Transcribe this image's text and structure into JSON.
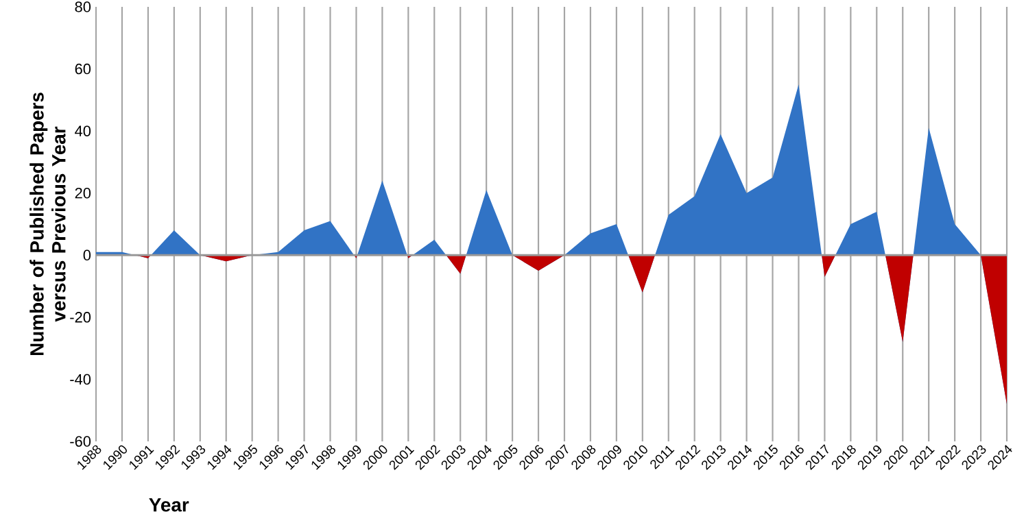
{
  "chart_data": {
    "type": "area",
    "xlabel": "Year",
    "ylabel": "Number of Published Papers versus Previous Year",
    "categories": [
      "1988",
      "1990",
      "1991",
      "1992",
      "1993",
      "1994",
      "1995",
      "1996",
      "1997",
      "1998",
      "1999",
      "2000",
      "2001",
      "2002",
      "2003",
      "2004",
      "2005",
      "2006",
      "2007",
      "2008",
      "2009",
      "2010",
      "2011",
      "2012",
      "2013",
      "2014",
      "2015",
      "2016",
      "2017",
      "2018",
      "2019",
      "2020",
      "2021",
      "2022",
      "2023",
      "2024"
    ],
    "series": [
      {
        "color": "#3173c5",
        "values": [
          1,
          1,
          -1,
          8,
          0,
          -2,
          0,
          1,
          8,
          11,
          -1,
          24,
          -1,
          5,
          -6,
          21,
          0,
          -5,
          0,
          7,
          10,
          -12,
          13,
          19,
          39,
          20,
          25,
          55,
          -7,
          10,
          14,
          -28,
          41,
          10,
          0,
          -48
        ],
        "colors": [
          "#3173c5",
          "#3173c5",
          "#c00000",
          "#3173c5",
          "#3173c5",
          "#c00000",
          "#3173c5",
          "#3173c5",
          "#3173c5",
          "#3173c5",
          "#c00000",
          "#3173c5",
          "#c00000",
          "#3173c5",
          "#c00000",
          "#3173c5",
          "#3173c5",
          "#c00000",
          "#3173c5",
          "#3173c5",
          "#3173c5",
          "#c00000",
          "#3173c5",
          "#3173c5",
          "#3173c5",
          "#3173c5",
          "#3173c5",
          "#3173c5",
          "#c00000",
          "#3173c5",
          "#3173c5",
          "#c00000",
          "#3173c5",
          "#3173c5",
          "#3173c5",
          "#c00000"
        ]
      }
    ],
    "ylim": [
      -60,
      80
    ],
    "yticks": [
      -60,
      -40,
      -20,
      0,
      20,
      40,
      60,
      80
    ],
    "grid": "x"
  }
}
